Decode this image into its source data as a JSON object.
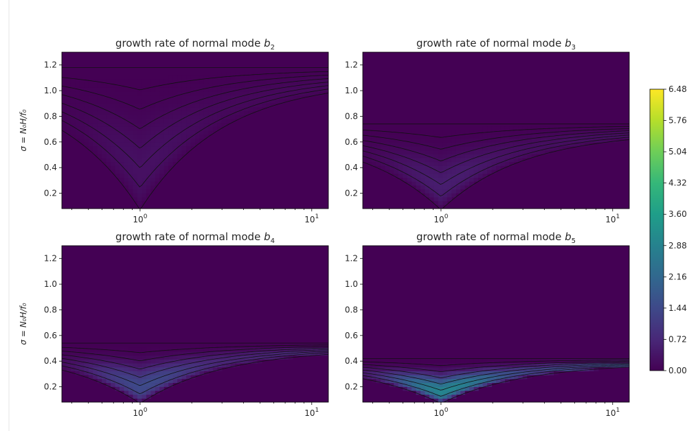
{
  "figure": {
    "colormap": "viridis",
    "colormap_stops": [
      "#440154",
      "#482878",
      "#3e4989",
      "#31688e",
      "#26828e",
      "#1f9e89",
      "#35b779",
      "#6ece58",
      "#b5de2b",
      "#fde725"
    ],
    "colorbar": {
      "min": 0.0,
      "max": 6.48,
      "ticks": [
        "0.00",
        "0.72",
        "1.44",
        "2.16",
        "2.88",
        "3.60",
        "4.32",
        "5.04",
        "5.76",
        "6.48"
      ]
    }
  },
  "chart_data": [
    {
      "type": "heatmap",
      "title_prefix": "growth rate of normal mode ",
      "title_var": "b",
      "title_sub": "2",
      "ylabel": "σ = N₀H/f₀",
      "x_scale": "log",
      "xlim": [
        0.35,
        12.5
      ],
      "ylim": [
        0.08,
        1.3
      ],
      "xtick_labels": [
        {
          "base": "10",
          "exp": "0",
          "value": 1
        },
        {
          "base": "10",
          "exp": "1",
          "value": 10
        }
      ],
      "ytick_labels": [
        "0.2",
        "0.4",
        "0.6",
        "0.8",
        "1.0",
        "1.2"
      ],
      "cutoff_low": 0.07,
      "cutoff_high": 1.18,
      "peak": 0.62
    },
    {
      "type": "heatmap",
      "title_prefix": "growth rate of normal mode ",
      "title_var": "b",
      "title_sub": "3",
      "ylabel": "",
      "x_scale": "log",
      "xlim": [
        0.35,
        12.5
      ],
      "ylim": [
        0.08,
        1.3
      ],
      "xtick_labels": [
        {
          "base": "10",
          "exp": "0",
          "value": 1
        },
        {
          "base": "10",
          "exp": "1",
          "value": 10
        }
      ],
      "ytick_labels": [
        "0.2",
        "0.4",
        "0.6",
        "0.8",
        "1.0",
        "1.2"
      ],
      "cutoff_low": 0.07,
      "cutoff_high": 0.74,
      "peak": 1.15
    },
    {
      "type": "heatmap",
      "title_prefix": "growth rate of normal mode ",
      "title_var": "b",
      "title_sub": "4",
      "ylabel": "σ = N₀H/f₀",
      "x_scale": "log",
      "xlim": [
        0.35,
        12.5
      ],
      "ylim": [
        0.08,
        1.3
      ],
      "xtick_labels": [
        {
          "base": "10",
          "exp": "0",
          "value": 1
        },
        {
          "base": "10",
          "exp": "1",
          "value": 10
        }
      ],
      "ytick_labels": [
        "0.2",
        "0.4",
        "0.6",
        "0.8",
        "1.0",
        "1.2"
      ],
      "cutoff_low": 0.07,
      "cutoff_high": 0.54,
      "peak": 3.2
    },
    {
      "type": "heatmap",
      "title_prefix": "growth rate of normal mode ",
      "title_var": "b",
      "title_sub": "5",
      "ylabel": "",
      "x_scale": "log",
      "xlim": [
        0.35,
        12.5
      ],
      "ylim": [
        0.08,
        1.3
      ],
      "xtick_labels": [
        {
          "base": "10",
          "exp": "0",
          "value": 1
        },
        {
          "base": "10",
          "exp": "1",
          "value": 10
        }
      ],
      "ytick_labels": [
        "0.2",
        "0.4",
        "0.6",
        "0.8",
        "1.0",
        "1.2"
      ],
      "cutoff_low": 0.07,
      "cutoff_high": 0.42,
      "peak": 6.48
    }
  ]
}
